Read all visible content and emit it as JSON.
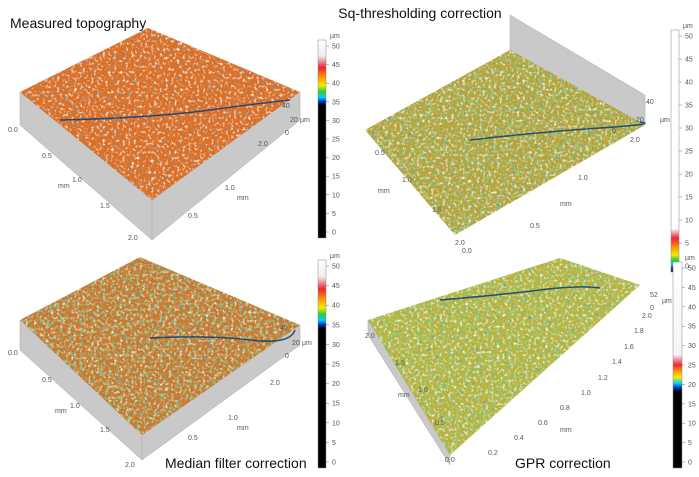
{
  "panels": [
    {
      "title": "Measured topography",
      "colorbar": {
        "unit": "µm",
        "ticks": [
          "50",
          "45",
          "40",
          "35",
          "30",
          "25",
          "20",
          "15",
          "10",
          "5",
          "0"
        ]
      },
      "axis_a": {
        "label": "mm",
        "ticks": [
          "0.0",
          "0.5",
          "1.0",
          "1.5",
          "2.0"
        ]
      },
      "axis_b": {
        "label": "mm",
        "ticks": [
          "0.5",
          "1.0",
          "2.0"
        ]
      },
      "z_axis": {
        "unit": "µm",
        "ticks": [
          "40",
          "20",
          "0"
        ]
      }
    },
    {
      "title": "Sq-thresholding correction",
      "colorbar": {
        "unit": "µm",
        "ticks": [
          "50",
          "45",
          "40",
          "35",
          "30",
          "25",
          "20",
          "15",
          "10",
          "5",
          "0"
        ]
      },
      "axis_a": {
        "label": "mm",
        "ticks": [
          "0.5",
          "1.0",
          "1.5",
          "2.0",
          "0.0"
        ]
      },
      "axis_b": {
        "label": "mm",
        "ticks": [
          "0.5",
          "1.0",
          "2.0"
        ]
      },
      "z_axis": {
        "unit": "µm",
        "ticks": [
          "40",
          "20",
          "0"
        ]
      }
    },
    {
      "title": "Median filter correction",
      "colorbar": {
        "unit": "µm",
        "ticks": [
          "50",
          "45",
          "40",
          "35",
          "30",
          "25",
          "20",
          "15",
          "10",
          "5",
          "0"
        ]
      },
      "axis_a": {
        "label": "mm",
        "ticks": [
          "0.0",
          "0.5",
          "1.0",
          "1.5",
          "2.0"
        ]
      },
      "axis_b": {
        "label": "mm",
        "ticks": [
          "0.5",
          "1.0",
          "2.0"
        ]
      },
      "z_axis": {
        "unit": "µm",
        "ticks": [
          "40",
          "20",
          "0"
        ]
      }
    },
    {
      "title": "GPR correction",
      "colorbar": {
        "unit": "µm",
        "ticks": [
          "50",
          "45",
          "40",
          "35",
          "30",
          "25",
          "20",
          "15",
          "10",
          "5",
          "0"
        ]
      },
      "axis_a": {
        "label": "mm",
        "ticks": [
          "2.0",
          "1.5",
          "1.0",
          "0.5",
          "0.0"
        ]
      },
      "axis_b": {
        "label": "mm",
        "ticks": [
          "0.2",
          "0.4",
          "0.6",
          "0.8",
          "1.0",
          "1.2",
          "1.4",
          "1.6",
          "1.8",
          "2.0"
        ]
      },
      "z_axis": {
        "unit": "µm",
        "ticks": [
          "52",
          "0"
        ]
      }
    }
  ]
}
